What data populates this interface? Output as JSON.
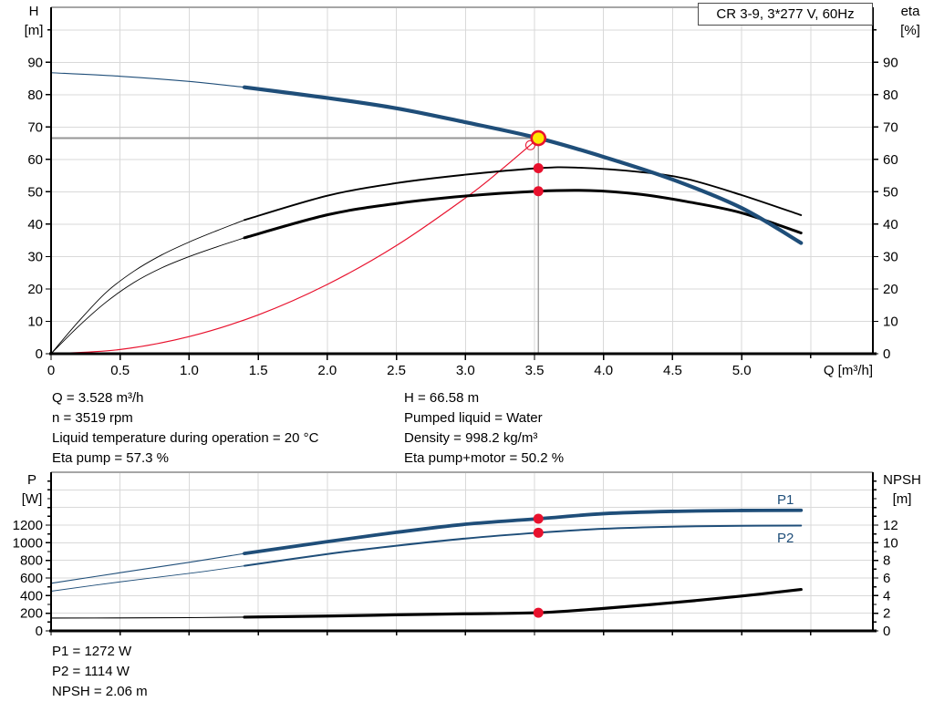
{
  "header": {
    "model_box": "CR 3-9, 3*277 V, 60Hz"
  },
  "axis_titles": {
    "top_left": [
      "H",
      "[m]"
    ],
    "top_right": [
      "eta",
      "[%]"
    ],
    "bottom_left": [
      "P",
      "[W]"
    ],
    "bottom_right": [
      "NPSH",
      "[m]"
    ],
    "x": "Q [m³/h]"
  },
  "duty_info": {
    "left": [
      "Q = 3.528 m³/h",
      "n = 3519 rpm",
      "Liquid temperature during operation = 20 °C",
      "Eta pump = 57.3 %"
    ],
    "right": [
      "H = 66.58 m",
      "Pumped liquid = Water",
      "Density = 998.2 kg/m³",
      "Eta pump+motor = 50.2 %"
    ]
  },
  "power_info": [
    "P1 = 1272 W",
    "P2 = 1114 W",
    "NPSH = 2.06 m"
  ],
  "series_labels": {
    "p1": "P1",
    "p2": "P2"
  },
  "colors": {
    "blue": "#1f4e79",
    "red": "#e8112d",
    "yellow": "#ffe600",
    "black": "#000000",
    "grid": "#d9d9d9",
    "border_gray": "#a6a6a6",
    "ref_gray": "#969696"
  },
  "chart_data": [
    {
      "type": "line",
      "title": "CR 3-9, 3*277 V, 60Hz",
      "xlabel": "Q [m³/h]",
      "ylabel_left": "H [m]",
      "ylabel_right": "eta [%]",
      "xlim": [
        0,
        5.95
      ],
      "ylim_left": [
        0,
        107
      ],
      "ylim_right": [
        0,
        107
      ],
      "grid": true,
      "x_ticks": [
        [
          0,
          "0"
        ],
        [
          0.5,
          "0.5"
        ],
        [
          1,
          "1.0"
        ],
        [
          1.5,
          "1.5"
        ],
        [
          2,
          "2.0"
        ],
        [
          2.5,
          "2.5"
        ],
        [
          3,
          "3.0"
        ],
        [
          3.5,
          "3.5"
        ],
        [
          4,
          "4.0"
        ],
        [
          4.5,
          "4.5"
        ],
        [
          5,
          "5.0"
        ],
        [
          5.5,
          null
        ]
      ],
      "y_ticks_left": [
        [
          0,
          "0"
        ],
        [
          10,
          "10"
        ],
        [
          20,
          "20"
        ],
        [
          30,
          "30"
        ],
        [
          40,
          "40"
        ],
        [
          50,
          "50"
        ],
        [
          60,
          "60"
        ],
        [
          70,
          "70"
        ],
        [
          80,
          "80"
        ],
        [
          90,
          "90"
        ],
        [
          100,
          null
        ]
      ],
      "y_ticks_right": [
        [
          0,
          "0"
        ],
        [
          10,
          "10"
        ],
        [
          20,
          "20"
        ],
        [
          30,
          "30"
        ],
        [
          40,
          "40"
        ],
        [
          50,
          "50"
        ],
        [
          60,
          "60"
        ],
        [
          70,
          "70"
        ],
        [
          80,
          "80"
        ],
        [
          90,
          "90"
        ],
        [
          100,
          null
        ]
      ],
      "grid_x": [
        0.5,
        1,
        1.5,
        2,
        2.5,
        3,
        3.5,
        4,
        4.5,
        5,
        5.5
      ],
      "grid_y": [
        10,
        20,
        30,
        40,
        50,
        60,
        70,
        80,
        90,
        100
      ],
      "series": [
        {
          "name": "affinity-line",
          "color": "red",
          "axis": "left",
          "width": 1.2,
          "points": [
            [
              0,
              0
            ],
            [
              0.5,
              1.3
            ],
            [
              1,
              5.3
            ],
            [
              1.5,
              12
            ],
            [
              2,
              21.4
            ],
            [
              2.5,
              33.4
            ],
            [
              3,
              48.1
            ],
            [
              3.25,
              56.5
            ],
            [
              3.528,
              66.58
            ]
          ],
          "end_circle": [
            3.47,
            64.4
          ]
        },
        {
          "name": "eta-pump-motor",
          "color": "black",
          "axis": "left",
          "thin_width": 0.9,
          "thick_width": 3,
          "thick_from": 1.4,
          "points": [
            [
              0,
              0
            ],
            [
              0.2,
              8.5
            ],
            [
              0.4,
              16
            ],
            [
              0.6,
              22
            ],
            [
              0.8,
              26.5
            ],
            [
              1,
              30
            ],
            [
              1.2,
              33
            ],
            [
              1.4,
              35.8
            ],
            [
              2,
              42.9
            ],
            [
              2.5,
              46.4
            ],
            [
              3,
              48.7
            ],
            [
              3.528,
              50.2
            ],
            [
              3.9,
              50.4
            ],
            [
              4.25,
              49.3
            ],
            [
              4.6,
              47
            ],
            [
              5,
              43.5
            ],
            [
              5.43,
              37.3
            ]
          ]
        },
        {
          "name": "eta-pump",
          "color": "black",
          "axis": "left",
          "thin_width": 0.9,
          "thick_width": 1.9,
          "thick_from": 1.4,
          "points": [
            [
              0,
              0
            ],
            [
              0.2,
              10
            ],
            [
              0.4,
              19
            ],
            [
              0.6,
              25.5
            ],
            [
              0.8,
              30.5
            ],
            [
              1,
              34.5
            ],
            [
              1.2,
              38
            ],
            [
              1.4,
              41.3
            ],
            [
              2,
              48.8
            ],
            [
              2.5,
              52.7
            ],
            [
              3,
              55.3
            ],
            [
              3.528,
              57.3
            ],
            [
              3.8,
              57.5
            ],
            [
              4.25,
              56.2
            ],
            [
              4.6,
              54
            ],
            [
              5,
              49
            ],
            [
              5.43,
              42.8
            ]
          ]
        },
        {
          "name": "qh-head",
          "color": "blue",
          "axis": "left",
          "thin_width": 1.1,
          "thick_width": 4.2,
          "thick_from": 1.4,
          "points": [
            [
              0,
              86.8
            ],
            [
              0.5,
              85.7
            ],
            [
              1,
              84.1
            ],
            [
              1.4,
              82.3
            ],
            [
              2,
              79
            ],
            [
              2.5,
              75.8
            ],
            [
              3,
              71.5
            ],
            [
              3.528,
              66.58
            ],
            [
              4,
              60.8
            ],
            [
              4.5,
              53.8
            ],
            [
              5,
              45
            ],
            [
              5.43,
              34.2
            ]
          ]
        }
      ],
      "duty_point": {
        "q": 3.528,
        "h": 66.58,
        "eta_pump": 57.3,
        "eta_pump_motor": 50.2
      }
    },
    {
      "type": "line",
      "title": "Power and NPSH curves",
      "xlabel": "Q [m³/h]",
      "ylabel_left": "P [W]",
      "ylabel_right": "NPSH [m]",
      "xlim": [
        0,
        5.95
      ],
      "ylim_left": [
        0,
        1800
      ],
      "ylim_right": [
        0,
        18
      ],
      "grid": true,
      "x_ticks": [
        [
          0,
          null
        ],
        [
          0.5,
          null
        ],
        [
          1,
          null
        ],
        [
          1.5,
          null
        ],
        [
          2,
          null
        ],
        [
          2.5,
          null
        ],
        [
          3,
          null
        ],
        [
          3.5,
          null
        ],
        [
          4,
          null
        ],
        [
          4.5,
          null
        ],
        [
          5,
          null
        ],
        [
          5.5,
          null
        ]
      ],
      "y_ticks_left": [
        [
          0,
          "0"
        ],
        [
          100,
          null
        ],
        [
          200,
          "200"
        ],
        [
          300,
          null
        ],
        [
          400,
          "400"
        ],
        [
          500,
          null
        ],
        [
          600,
          "600"
        ],
        [
          700,
          null
        ],
        [
          800,
          "800"
        ],
        [
          900,
          null
        ],
        [
          1000,
          "1000"
        ],
        [
          1100,
          null
        ],
        [
          1200,
          "1200"
        ],
        [
          1300,
          null
        ],
        [
          1400,
          null
        ],
        [
          1500,
          null
        ],
        [
          1600,
          null
        ],
        [
          1700,
          null
        ]
      ],
      "y_ticks_right": [
        [
          0,
          "0"
        ],
        [
          1,
          null
        ],
        [
          2,
          "2"
        ],
        [
          3,
          null
        ],
        [
          4,
          "4"
        ],
        [
          5,
          null
        ],
        [
          6,
          "6"
        ],
        [
          7,
          null
        ],
        [
          8,
          "8"
        ],
        [
          9,
          null
        ],
        [
          10,
          "10"
        ],
        [
          11,
          null
        ],
        [
          12,
          "12"
        ],
        [
          13,
          null
        ],
        [
          14,
          null
        ],
        [
          15,
          null
        ],
        [
          16,
          null
        ],
        [
          17,
          null
        ]
      ],
      "grid_x": [
        0.5,
        1,
        1.5,
        2,
        2.5,
        3,
        3.5,
        4,
        4.5,
        5,
        5.5
      ],
      "grid_y": [
        200,
        400,
        600,
        800,
        1000,
        1200,
        1400,
        1600
      ],
      "series": [
        {
          "name": "npsh",
          "color": "black",
          "axis": "right",
          "thin_width": 1.1,
          "thick_width": 3.2,
          "thick_from": 1.4,
          "points": [
            [
              0,
              1.45
            ],
            [
              0.5,
              1.47
            ],
            [
              1,
              1.5
            ],
            [
              1.4,
              1.56
            ],
            [
              2,
              1.68
            ],
            [
              2.5,
              1.82
            ],
            [
              3,
              1.94
            ],
            [
              3.528,
              2.06
            ],
            [
              4,
              2.55
            ],
            [
              4.5,
              3.2
            ],
            [
              5,
              3.95
            ],
            [
              5.43,
              4.7
            ]
          ]
        },
        {
          "name": "p2",
          "color": "blue",
          "axis": "left",
          "thin_width": 0.9,
          "thick_width": 2,
          "thick_from": 1.4,
          "points": [
            [
              0,
              450
            ],
            [
              0.5,
              556
            ],
            [
              1,
              652
            ],
            [
              1.4,
              738
            ],
            [
              2,
              872
            ],
            [
              2.5,
              966
            ],
            [
              3,
              1048
            ],
            [
              3.528,
              1114
            ],
            [
              4,
              1158
            ],
            [
              4.5,
              1182
            ],
            [
              5,
              1192
            ],
            [
              5.43,
              1195
            ]
          ]
        },
        {
          "name": "p1",
          "color": "blue",
          "axis": "left",
          "thin_width": 1.1,
          "thick_width": 3.8,
          "thick_from": 1.4,
          "points": [
            [
              0,
              540
            ],
            [
              0.5,
              660
            ],
            [
              1,
              778
            ],
            [
              1.4,
              878
            ],
            [
              2,
              1012
            ],
            [
              2.5,
              1118
            ],
            [
              3,
              1210
            ],
            [
              3.528,
              1272
            ],
            [
              4,
              1330
            ],
            [
              4.5,
              1356
            ],
            [
              5,
              1366
            ],
            [
              5.43,
              1368
            ]
          ]
        }
      ],
      "duty_values": {
        "q": 3.528,
        "p1": 1272,
        "p2": 1114,
        "npsh": 2.06
      }
    }
  ]
}
